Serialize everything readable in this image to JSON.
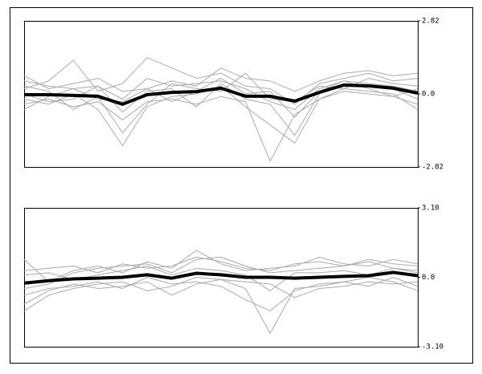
{
  "chart_data": [
    {
      "type": "line",
      "categories": [
        null,
        null,
        null,
        null,
        null,
        null,
        null,
        null,
        null,
        null,
        null,
        null,
        null,
        null,
        null,
        null,
        null
      ],
      "ylim": [
        -2.82,
        2.82
      ],
      "yticks": [
        2.82,
        {
          "value": 0,
          "label": "0.0"
        },
        -2.82
      ],
      "series": [
        {
          "color": "#aaaaaa",
          "values": [
            0.5,
            0.3,
            0.2,
            0.3,
            -0.2,
            0.6,
            0.3,
            0.4,
            0.5,
            0.2,
            -0.3,
            -0.6,
            0.2,
            0.5,
            0.4,
            0.3,
            0.1
          ]
        },
        {
          "color": "#aaaaaa",
          "values": [
            -0.4,
            -0.2,
            -0.5,
            -0.3,
            -1.0,
            -0.3,
            -0.2,
            -0.4,
            -0.1,
            -0.3,
            -2.6,
            -0.8,
            -0.2,
            0.1,
            0,
            -0.1,
            -0.4
          ]
        },
        {
          "color": "#aaaaaa",
          "values": [
            0.2,
            0.5,
            1.3,
            0.1,
            0.4,
            1.4,
            1.0,
            0.6,
            0.8,
            0.3,
            0.2,
            -0.4,
            0.4,
            0.6,
            0.8,
            0.5,
            0.6
          ]
        },
        {
          "color": "#aaaaaa",
          "values": [
            -0.2,
            -0.4,
            0,
            -0.6,
            -2.0,
            -0.5,
            -0.1,
            0,
            0.3,
            -0.5,
            -1.2,
            -1.9,
            -0.2,
            0.2,
            0.1,
            0,
            -0.6
          ]
        },
        {
          "color": "#aaaaaa",
          "values": [
            0.7,
            0.2,
            0.4,
            0.6,
            0.1,
            0.2,
            0.5,
            0.3,
            1.0,
            0.6,
            0.5,
            0.1,
            0.5,
            0.8,
            0.9,
            0.7,
            0.8
          ]
        },
        {
          "color": "#aaaaaa",
          "values": [
            0,
            -0.3,
            -0.2,
            0.3,
            -0.7,
            0.1,
            0.2,
            -0.5,
            0.4,
            -0.2,
            -0.4,
            -1.6,
            0,
            0.4,
            0.3,
            0.2,
            -0.2
          ]
        },
        {
          "color": "#aaaaaa",
          "values": [
            0.3,
            0.1,
            -0.6,
            -0.1,
            -1.5,
            -0.4,
            0.4,
            0.2,
            0.1,
            0.8,
            -0.2,
            -0.3,
            0.3,
            0.2,
            0.6,
            0.4,
            0.3
          ]
        },
        {
          "color": "#aaaaaa",
          "values": [
            -0.6,
            -0.1,
            0.2,
            -0.2,
            -0.3,
            0.2,
            -0.3,
            0.1,
            0.6,
            0,
            0.1,
            -0.9,
            0.1,
            0.5,
            0.2,
            -0.1,
            0.2
          ]
        },
        {
          "color": "#000000",
          "values": [
            -0.03,
            -0.03,
            -0.06,
            -0.09,
            -0.4,
            -0.03,
            0.06,
            0.09,
            0.22,
            -0.09,
            -0.09,
            -0.28,
            0.06,
            0.34,
            0.31,
            0.22,
            0.03
          ]
        }
      ]
    },
    {
      "type": "line",
      "categories": [
        null,
        null,
        null,
        null,
        null,
        null,
        null,
        null,
        null,
        null,
        null,
        null,
        null,
        null,
        null,
        null,
        null
      ],
      "ylim": [
        -3.1,
        3.1
      ],
      "yticks": [
        {
          "value": 3.1,
          "label": "3.10"
        },
        {
          "value": 0,
          "label": "0.0"
        },
        {
          "value": -3.1,
          "label": "-3.10"
        }
      ],
      "series": [
        {
          "color": "#aaaaaa",
          "values": [
            -0.5,
            -0.3,
            0.2,
            0.4,
            0.5,
            0.6,
            0.2,
            0.8,
            0.9,
            0.5,
            0.2,
            0.3,
            0.4,
            0.5,
            0.7,
            0.4,
            0.3
          ]
        },
        {
          "color": "#aaaaaa",
          "values": [
            -1.5,
            -0.8,
            -0.5,
            -0.3,
            -0.2,
            -0.6,
            -0.4,
            0,
            -0.1,
            -0.5,
            -2.5,
            -0.5,
            -0.4,
            -0.2,
            0,
            -0.2,
            -0.6
          ]
        },
        {
          "color": "#aaaaaa",
          "values": [
            0.8,
            -0.2,
            0.3,
            0.5,
            0.2,
            0.7,
            0.4,
            1.2,
            0.6,
            0.3,
            0.4,
            0.5,
            0.9,
            0.6,
            0.5,
            0.8,
            0.6
          ]
        },
        {
          "color": "#aaaaaa",
          "values": [
            -0.8,
            -0.5,
            -0.4,
            -0.2,
            -0.5,
            0,
            -0.3,
            -0.2,
            -0.4,
            -1.0,
            -1.5,
            -0.6,
            -0.3,
            -0.2,
            -0.4,
            0,
            -0.4
          ]
        },
        {
          "color": "#aaaaaa",
          "values": [
            0.3,
            0.4,
            0.5,
            0.2,
            0.6,
            0.4,
            0.5,
            0.9,
            0.7,
            0.4,
            0.3,
            0.6,
            0.7,
            0.5,
            0.8,
            0.6,
            0.5
          ]
        },
        {
          "color": "#aaaaaa",
          "values": [
            -1.2,
            -0.6,
            -0.3,
            -0.5,
            -0.4,
            -0.2,
            -0.8,
            -0.3,
            -0.1,
            -0.2,
            -0.3,
            -0.9,
            -0.5,
            -0.4,
            -0.2,
            -0.3,
            -0.2
          ]
        },
        {
          "color": "#aaaaaa",
          "values": [
            0.1,
            0.2,
            -0.1,
            0.1,
            0.3,
            0.5,
            0.1,
            0.4,
            0.3,
            0.1,
            -0.6,
            0.2,
            0.2,
            0.3,
            0.1,
            0.4,
            0.2
          ]
        },
        {
          "color": "#000000",
          "values": [
            -0.26,
            -0.15,
            -0.07,
            -0.04,
            0,
            0.11,
            -0.04,
            0.18,
            0.11,
            0,
            0,
            -0.04,
            0,
            0.04,
            0.07,
            0.22,
            0.07
          ]
        }
      ]
    }
  ]
}
